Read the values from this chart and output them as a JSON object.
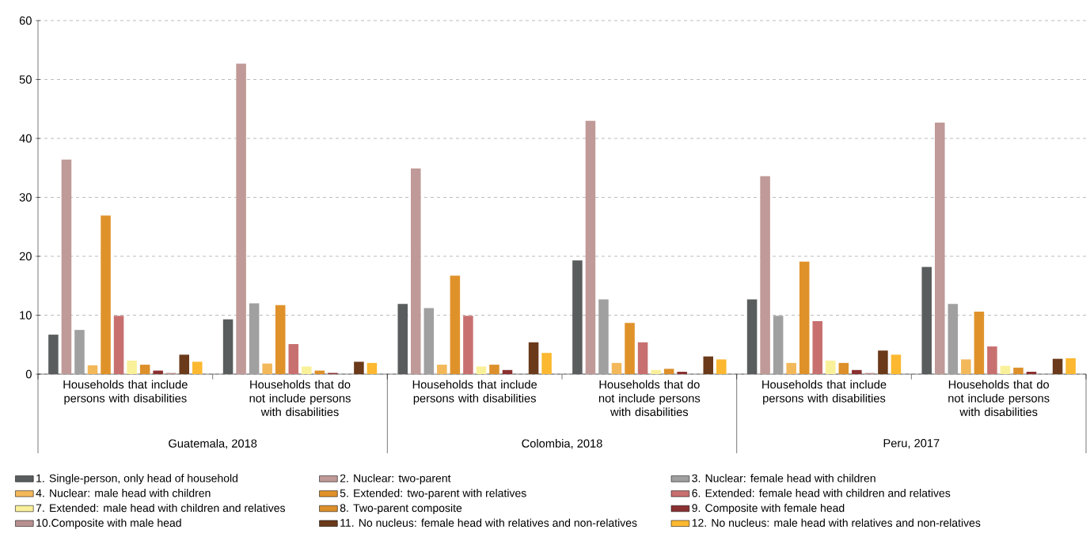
{
  "chart_data": {
    "type": "bar",
    "categories": [
      "Households that include persons with disabilities",
      "Households that do not include persons with disabilities",
      "Households that include persons with disabilities",
      "Households that do not include persons with disabilities",
      "Households that include persons with disabilities",
      "Households that do not include persons with disabilities"
    ],
    "annotations": [
      "Guatemala, 2018",
      "Colombia, 2018",
      "Peru, 2017"
    ],
    "series": [
      {
        "name": "1. Single-person, only head of household",
        "color": "#5a5d5d",
        "values": [
          6.7,
          9.3,
          11.9,
          19.3,
          12.7,
          18.2
        ]
      },
      {
        "name": "2. Nuclear: two-parent",
        "color": "#c09a98",
        "values": [
          36.4,
          52.7,
          34.9,
          43.0,
          33.6,
          42.7
        ]
      },
      {
        "name": "3. Nuclear: female head with children",
        "color": "#a0a0a0",
        "values": [
          7.5,
          12.0,
          11.2,
          12.7,
          9.9,
          11.9
        ]
      },
      {
        "name": "4. Nuclear: male head with children",
        "color": "#f2b85a",
        "values": [
          1.5,
          1.8,
          1.6,
          1.9,
          1.9,
          2.5
        ]
      },
      {
        "name": "5. Extended: two-parent with relatives",
        "color": "#e0922a",
        "values": [
          26.9,
          11.7,
          16.7,
          8.7,
          19.1,
          10.6
        ]
      },
      {
        "name": "6. Extended: female head with children and relatives",
        "color": "#c87070",
        "values": [
          9.9,
          5.1,
          9.9,
          5.4,
          9.0,
          4.7
        ]
      },
      {
        "name": "7. Extended: male head with children and relatives",
        "color": "#f9f09a",
        "values": [
          2.3,
          1.3,
          1.3,
          0.7,
          2.3,
          1.4
        ]
      },
      {
        "name": "8. Two-parent composite",
        "color": "#dc8f2a",
        "values": [
          1.6,
          0.6,
          1.6,
          0.9,
          1.9,
          1.1
        ]
      },
      {
        "name": "9. Composite with female head",
        "color": "#8b3030",
        "values": [
          0.6,
          0.2,
          0.7,
          0.4,
          0.7,
          0.4
        ]
      },
      {
        "name": "10.Composite with male head",
        "color": "#b89090",
        "values": [
          0.2,
          null,
          null,
          null,
          0.2,
          null
        ]
      },
      {
        "name": "11. No nucleus: female head with relatives and non-relatives",
        "color": "#6a3a1a",
        "values": [
          3.3,
          2.1,
          5.4,
          3.0,
          4.0,
          2.6
        ]
      },
      {
        "name": "12. No nucleus: male head with relatives and non-relatives",
        "color": "#fbb830",
        "values": [
          2.1,
          1.9,
          3.6,
          2.5,
          3.3,
          2.7
        ]
      }
    ],
    "ylim": [
      0,
      60
    ],
    "yticks": [
      0,
      10,
      20,
      30,
      40,
      50,
      60
    ],
    "grid": "y",
    "legend": "bottom"
  }
}
